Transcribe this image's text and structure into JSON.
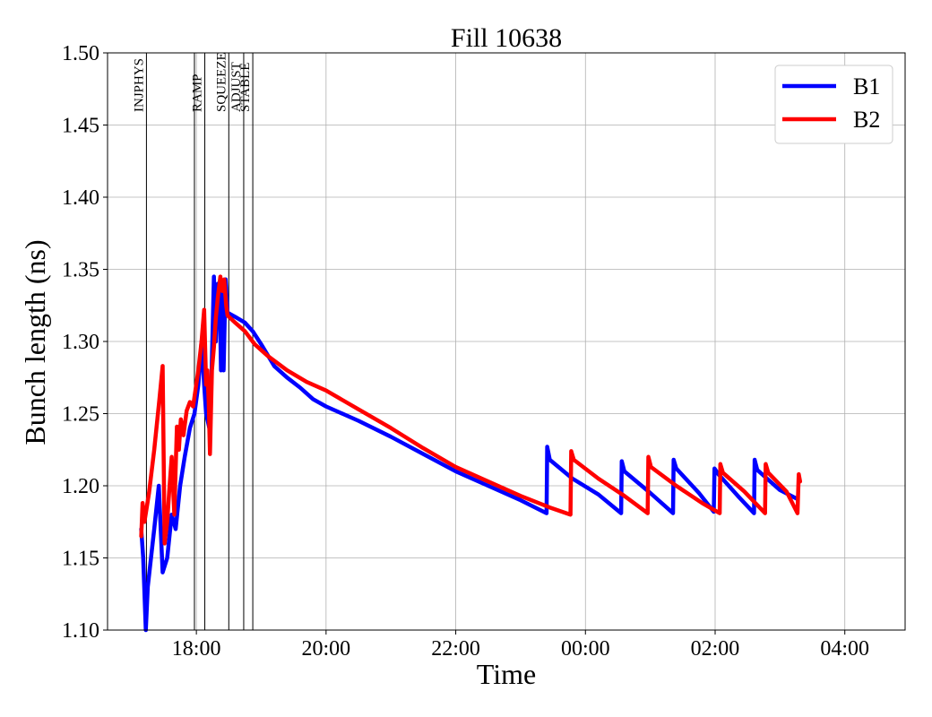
{
  "chart_data": {
    "type": "line",
    "title": "Fill 10638",
    "xlabel": "Time",
    "ylabel": "Bunch length (ns)",
    "ylim": [
      1.1,
      1.5
    ],
    "xlim_hours": [
      16.63,
      28.93
    ],
    "grid": true,
    "legend_position": "top-right",
    "x_ticks": [
      {
        "h": 18,
        "label": "18:00"
      },
      {
        "h": 20,
        "label": "20:00"
      },
      {
        "h": 22,
        "label": "22:00"
      },
      {
        "h": 24,
        "label": "00:00"
      },
      {
        "h": 26,
        "label": "02:00"
      },
      {
        "h": 28,
        "label": "04:00"
      }
    ],
    "y_ticks": [
      {
        "v": 1.1,
        "label": "1.10"
      },
      {
        "v": 1.15,
        "label": "1.15"
      },
      {
        "v": 1.2,
        "label": "1.20"
      },
      {
        "v": 1.25,
        "label": "1.25"
      },
      {
        "v": 1.3,
        "label": "1.30"
      },
      {
        "v": 1.35,
        "label": "1.35"
      },
      {
        "v": 1.4,
        "label": "1.40"
      },
      {
        "v": 1.45,
        "label": "1.45"
      },
      {
        "v": 1.5,
        "label": "1.50"
      }
    ],
    "phases": [
      {
        "label": "INJPHYS",
        "h": 17.23
      },
      {
        "label": "",
        "h": 17.97
      },
      {
        "label": "RAMP",
        "h": 18.13
      },
      {
        "label": "SQUEEZE",
        "h": 18.5
      },
      {
        "label": "ADJUST",
        "h": 18.73
      },
      {
        "label": "STABLE",
        "h": 18.87
      }
    ],
    "series": [
      {
        "name": "B1",
        "color": "#0000ff",
        "points": [
          [
            17.15,
            1.17
          ],
          [
            17.18,
            1.15
          ],
          [
            17.22,
            1.1
          ],
          [
            17.25,
            1.13
          ],
          [
            17.35,
            1.17
          ],
          [
            17.42,
            1.2
          ],
          [
            17.48,
            1.14
          ],
          [
            17.55,
            1.15
          ],
          [
            17.62,
            1.18
          ],
          [
            17.68,
            1.17
          ],
          [
            17.75,
            1.2
          ],
          [
            17.82,
            1.22
          ],
          [
            17.9,
            1.24
          ],
          [
            17.97,
            1.25
          ],
          [
            18.03,
            1.27
          ],
          [
            18.08,
            1.3
          ],
          [
            18.12,
            1.27
          ],
          [
            18.15,
            1.25
          ],
          [
            18.2,
            1.24
          ],
          [
            18.23,
            1.27
          ],
          [
            18.27,
            1.345
          ],
          [
            18.3,
            1.3
          ],
          [
            18.33,
            1.34
          ],
          [
            18.36,
            1.33
          ],
          [
            18.38,
            1.28
          ],
          [
            18.4,
            1.34
          ],
          [
            18.42,
            1.28
          ],
          [
            18.45,
            1.343
          ],
          [
            18.48,
            1.32
          ],
          [
            18.6,
            1.317
          ],
          [
            18.75,
            1.313
          ],
          [
            18.87,
            1.307
          ],
          [
            19.0,
            1.298
          ],
          [
            19.2,
            1.283
          ],
          [
            19.4,
            1.275
          ],
          [
            19.6,
            1.268
          ],
          [
            19.8,
            1.26
          ],
          [
            20.0,
            1.255
          ],
          [
            20.5,
            1.245
          ],
          [
            21.0,
            1.234
          ],
          [
            21.5,
            1.222
          ],
          [
            22.0,
            1.21
          ],
          [
            22.5,
            1.2
          ],
          [
            23.0,
            1.19
          ],
          [
            23.4,
            1.181
          ],
          [
            23.41,
            1.227
          ],
          [
            23.45,
            1.218
          ],
          [
            23.8,
            1.205
          ],
          [
            24.2,
            1.194
          ],
          [
            24.55,
            1.181
          ],
          [
            24.56,
            1.217
          ],
          [
            24.6,
            1.21
          ],
          [
            25.0,
            1.195
          ],
          [
            25.35,
            1.181
          ],
          [
            25.36,
            1.218
          ],
          [
            25.4,
            1.212
          ],
          [
            25.75,
            1.195
          ],
          [
            25.98,
            1.182
          ],
          [
            25.99,
            1.212
          ],
          [
            26.05,
            1.208
          ],
          [
            26.35,
            1.193
          ],
          [
            26.6,
            1.181
          ],
          [
            26.61,
            1.218
          ],
          [
            26.65,
            1.211
          ],
          [
            27.0,
            1.197
          ],
          [
            27.26,
            1.191
          ]
        ]
      },
      {
        "name": "B2",
        "color": "#ff0000",
        "points": [
          [
            17.15,
            1.165
          ],
          [
            17.17,
            1.188
          ],
          [
            17.2,
            1.175
          ],
          [
            17.27,
            1.195
          ],
          [
            17.35,
            1.225
          ],
          [
            17.43,
            1.26
          ],
          [
            17.48,
            1.283
          ],
          [
            17.51,
            1.16
          ],
          [
            17.55,
            1.175
          ],
          [
            17.58,
            1.195
          ],
          [
            17.62,
            1.22
          ],
          [
            17.66,
            1.18
          ],
          [
            17.7,
            1.241
          ],
          [
            17.73,
            1.225
          ],
          [
            17.76,
            1.246
          ],
          [
            17.8,
            1.235
          ],
          [
            17.85,
            1.252
          ],
          [
            17.9,
            1.258
          ],
          [
            17.95,
            1.255
          ],
          [
            18.03,
            1.28
          ],
          [
            18.08,
            1.3
          ],
          [
            18.12,
            1.322
          ],
          [
            18.15,
            1.27
          ],
          [
            18.17,
            1.28
          ],
          [
            18.19,
            1.258
          ],
          [
            18.21,
            1.222
          ],
          [
            18.24,
            1.28
          ],
          [
            18.27,
            1.296
          ],
          [
            18.3,
            1.316
          ],
          [
            18.33,
            1.33
          ],
          [
            18.37,
            1.345
          ],
          [
            18.4,
            1.335
          ],
          [
            18.43,
            1.343
          ],
          [
            18.46,
            1.325
          ],
          [
            18.48,
            1.318
          ],
          [
            18.6,
            1.313
          ],
          [
            18.75,
            1.307
          ],
          [
            18.9,
            1.298
          ],
          [
            19.1,
            1.29
          ],
          [
            19.4,
            1.28
          ],
          [
            19.7,
            1.272
          ],
          [
            20.0,
            1.266
          ],
          [
            20.5,
            1.253
          ],
          [
            21.0,
            1.24
          ],
          [
            21.5,
            1.226
          ],
          [
            22.0,
            1.213
          ],
          [
            22.5,
            1.203
          ],
          [
            23.0,
            1.193
          ],
          [
            23.45,
            1.185
          ],
          [
            23.77,
            1.18
          ],
          [
            23.78,
            1.224
          ],
          [
            23.82,
            1.218
          ],
          [
            24.2,
            1.205
          ],
          [
            24.6,
            1.193
          ],
          [
            24.96,
            1.181
          ],
          [
            24.97,
            1.22
          ],
          [
            25.01,
            1.213
          ],
          [
            25.4,
            1.2
          ],
          [
            25.8,
            1.188
          ],
          [
            26.07,
            1.181
          ],
          [
            26.08,
            1.215
          ],
          [
            26.12,
            1.209
          ],
          [
            26.45,
            1.196
          ],
          [
            26.77,
            1.181
          ],
          [
            26.78,
            1.215
          ],
          [
            26.82,
            1.209
          ],
          [
            27.1,
            1.196
          ],
          [
            27.27,
            1.181
          ],
          [
            27.29,
            1.208
          ],
          [
            27.31,
            1.203
          ]
        ]
      }
    ]
  }
}
